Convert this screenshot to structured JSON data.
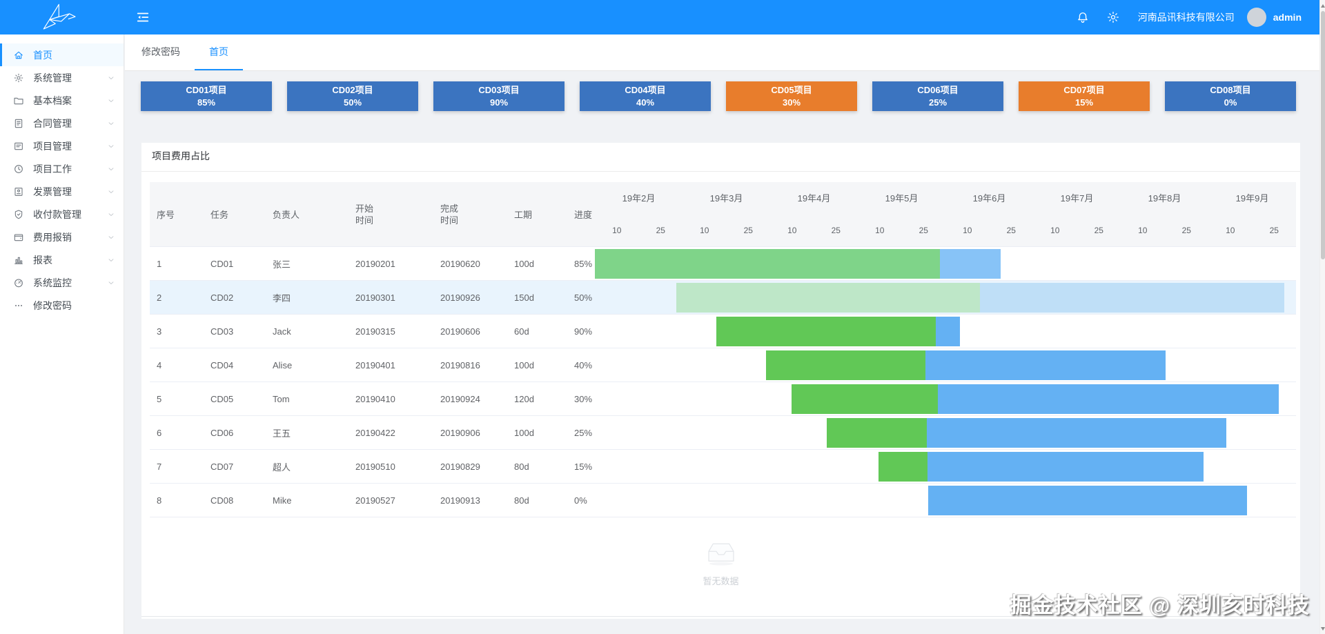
{
  "theme": {
    "header_bg": "#1890ff",
    "accent": "#1890ff",
    "card_blue": "#3b74c0",
    "card_orange": "#e87d2c"
  },
  "header": {
    "company": "河南品讯科技有限公司",
    "username": "admin"
  },
  "sidebar": {
    "items": [
      {
        "key": "home",
        "label": "首页",
        "icon": "home-icon",
        "active": true,
        "expandable": false
      },
      {
        "key": "system-mgmt",
        "label": "系统管理",
        "icon": "gear-icon",
        "active": false,
        "expandable": true
      },
      {
        "key": "base-archives",
        "label": "基本档案",
        "icon": "folder-icon",
        "active": false,
        "expandable": true
      },
      {
        "key": "contract-mgmt",
        "label": "合同管理",
        "icon": "contract-icon",
        "active": false,
        "expandable": true
      },
      {
        "key": "project-mgmt",
        "label": "项目管理",
        "icon": "project-icon",
        "active": false,
        "expandable": true
      },
      {
        "key": "project-work",
        "label": "项目工作",
        "icon": "clock-icon",
        "active": false,
        "expandable": true
      },
      {
        "key": "invoice-mgmt",
        "label": "发票管理",
        "icon": "invoice-icon",
        "active": false,
        "expandable": true
      },
      {
        "key": "payment-mgmt",
        "label": "收付款管理",
        "icon": "shield-icon",
        "active": false,
        "expandable": true
      },
      {
        "key": "expense",
        "label": "费用报销",
        "icon": "wallet-icon",
        "active": false,
        "expandable": true
      },
      {
        "key": "reports",
        "label": "报表",
        "icon": "chart-icon",
        "active": false,
        "expandable": true
      },
      {
        "key": "system-monitor",
        "label": "系统监控",
        "icon": "monitor-icon",
        "active": false,
        "expandable": true
      },
      {
        "key": "change-password",
        "label": "修改密码",
        "icon": "ellipsis-icon",
        "active": false,
        "expandable": false
      }
    ]
  },
  "tabs": [
    {
      "key": "change-password",
      "label": "修改密码",
      "active": false
    },
    {
      "key": "home",
      "label": "首页",
      "active": true
    }
  ],
  "cards": [
    {
      "id": "cd01",
      "title": "CD01项目",
      "percent": "85%",
      "color": "#3b74c0"
    },
    {
      "id": "cd02",
      "title": "CD02项目",
      "percent": "50%",
      "color": "#3b74c0"
    },
    {
      "id": "cd03",
      "title": "CD03项目",
      "percent": "90%",
      "color": "#3b74c0"
    },
    {
      "id": "cd04",
      "title": "CD04项目",
      "percent": "40%",
      "color": "#3b74c0"
    },
    {
      "id": "cd05",
      "title": "CD05项目",
      "percent": "30%",
      "color": "#e87d2c"
    },
    {
      "id": "cd06",
      "title": "CD06项目",
      "percent": "25%",
      "color": "#3b74c0"
    },
    {
      "id": "cd07",
      "title": "CD07项目",
      "percent": "15%",
      "color": "#e87d2c"
    },
    {
      "id": "cd08",
      "title": "CD08项目",
      "percent": "0%",
      "color": "#3b74c0"
    }
  ],
  "panel": {
    "title": "项目费用占比"
  },
  "chart_data": {
    "type": "gantt",
    "title": "项目费用占比",
    "columns": [
      {
        "label": "序号",
        "wrap": false
      },
      {
        "label": "任务",
        "wrap": false
      },
      {
        "label": "负责人",
        "wrap": false
      },
      {
        "label": "开始时间",
        "wrap": true
      },
      {
        "label": "完成时间",
        "wrap": true
      },
      {
        "label": "工期",
        "wrap": false
      },
      {
        "label": "进度",
        "wrap": false
      }
    ],
    "timeline": {
      "months": [
        "19年2月",
        "19年3月",
        "19年4月",
        "19年5月",
        "19年6月",
        "19年7月",
        "19年8月",
        "19年9月"
      ],
      "ticks": [
        "10",
        "25"
      ],
      "start": "20190201",
      "end": "20190930"
    },
    "rows": [
      {
        "no": "1",
        "task": "CD01",
        "owner": "张三",
        "start": "20190201",
        "finish": "20190620",
        "duration": "100d",
        "progress": "85%",
        "highlighted": false
      },
      {
        "no": "2",
        "task": "CD02",
        "owner": "李四",
        "start": "20190301",
        "finish": "20190926",
        "duration": "150d",
        "progress": "50%",
        "highlighted": true
      },
      {
        "no": "3",
        "task": "CD03",
        "owner": "Jack",
        "start": "20190315",
        "finish": "20190606",
        "duration": "60d",
        "progress": "90%",
        "highlighted": false
      },
      {
        "no": "4",
        "task": "CD04",
        "owner": "Alise",
        "start": "20190401",
        "finish": "20190816",
        "duration": "100d",
        "progress": "40%",
        "highlighted": false
      },
      {
        "no": "5",
        "task": "CD05",
        "owner": "Tom",
        "start": "20190410",
        "finish": "20190924",
        "duration": "120d",
        "progress": "30%",
        "highlighted": false
      },
      {
        "no": "6",
        "task": "CD06",
        "owner": "王五",
        "start": "20190422",
        "finish": "20190906",
        "duration": "100d",
        "progress": "25%",
        "highlighted": false
      },
      {
        "no": "7",
        "task": "CD07",
        "owner": "超人",
        "start": "20190510",
        "finish": "20190829",
        "duration": "80d",
        "progress": "15%",
        "highlighted": false
      },
      {
        "no": "8",
        "task": "CD08",
        "owner": "Mike",
        "start": "20190527",
        "finish": "20190913",
        "duration": "80d",
        "progress": "0%",
        "highlighted": false
      }
    ],
    "colors": {
      "done": "#61c856",
      "remaining": "#64b1f3",
      "done_row1": "#7fd489",
      "remaining_row1": "#87c3f7",
      "done_highlight": "#bee7c8",
      "remaining_highlight": "#bfdff7",
      "highlight_row_bg": "#e9f4fd"
    }
  },
  "empty_state": {
    "text": "暂无数据"
  },
  "watermark": {
    "text": "掘金技术社区 @ 深圳亥时科技"
  }
}
